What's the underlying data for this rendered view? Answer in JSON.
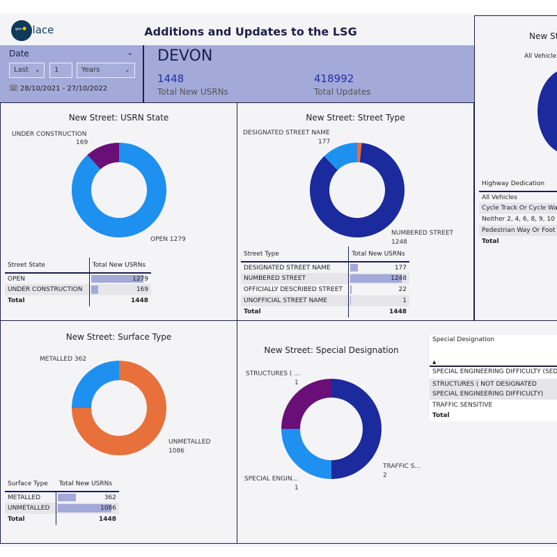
{
  "header": {
    "title": "Additions and Updates to the LSG",
    "logo_text": "geoplace"
  },
  "filter": {
    "label": "Date",
    "mode": "Last",
    "count": "1",
    "unit": "Years",
    "range": "28/10/2021 - 27/10/2022"
  },
  "summary": {
    "area": "DEVON",
    "new_usrns": "1448",
    "new_usrns_label": "Total New USRNs",
    "updates": "418992",
    "updates_label": "Total Updates"
  },
  "colors": {
    "navy": "#1b2a9c",
    "blue": "#1e90f0",
    "purple": "#6a0f78",
    "orange": "#e8703a",
    "band": "#a3a9d8"
  },
  "usrn_state": {
    "title": "New Street: USRN State",
    "col1": "Street State",
    "col2": "Total New USRNs",
    "rows": [
      {
        "name": "OPEN",
        "value": 1279
      },
      {
        "name": "UNDER CONSTRUCTION",
        "value": 169
      }
    ],
    "total_label": "Total",
    "total": "1448",
    "labels": {
      "a": "UNDER CONSTRUCTION",
      "a_v": "169",
      "b": "OPEN 1279"
    }
  },
  "street_type": {
    "title": "New Street: Street Type",
    "col1": "Street Type",
    "col2": "Total New USRNs",
    "rows": [
      {
        "name": "DESIGNATED STREET NAME",
        "value": 177
      },
      {
        "name": "NUMBERED STREET",
        "value": 1248
      },
      {
        "name": "OFFICIALLY DESCRIBED STREET",
        "value": 22
      },
      {
        "name": "UNOFFICIAL STREET NAME",
        "value": 1
      }
    ],
    "total_label": "Total",
    "total": "1448",
    "labels": {
      "a": "DESIGNATED STREET NAME",
      "a_v": "177",
      "b": "NUMBERED STREET",
      "b_v": "1248"
    }
  },
  "surface_type": {
    "title": "New Street: Surface Type",
    "col1": "Surface Type",
    "col2": "Total New USRNs",
    "rows": [
      {
        "name": "METALLED",
        "value": 362
      },
      {
        "name": "UNMETALLED",
        "value": 1086
      }
    ],
    "total_label": "Total",
    "total": "1448",
    "labels": {
      "a": "METALLED 362",
      "b": "UNMETALLED",
      "b_v": "1086"
    }
  },
  "special": {
    "title": "New Street: Special Designation",
    "col1": "Special Designation",
    "rows": [
      "SPECIAL ENGINEERING DIFFICULTY (SED",
      "STRUCTURES ( NOT DESIGNATED SPECIAL ENGINEERING DIFFICULTY)",
      "TRAFFIC SENSITIVE"
    ],
    "total_label": "Total",
    "slices": [
      {
        "name": "TRAFFIC SENSITIVE",
        "value": 2
      },
      {
        "name": "SPECIAL ENGINEERING DIFFICULTY",
        "value": 1
      },
      {
        "name": "STRUCTURES",
        "value": 1
      }
    ],
    "labels": {
      "a": "STRUCTURES ( ...",
      "a_v": "1",
      "b": "TRAFFIC S...",
      "b_v": "2",
      "c": "SPECIAL ENGIN...",
      "c_v": "1"
    }
  },
  "highway": {
    "title": "New St",
    "subtitle": "All Vehicle",
    "col1": "Highway Dedication",
    "rows": [
      "All Vehicles",
      "Cycle Track Or Cycle Wa",
      "Neither 2, 4, 6, 8, 9, 10",
      "Pedestrian Way Or Foot"
    ],
    "total_label": "Total"
  }
}
